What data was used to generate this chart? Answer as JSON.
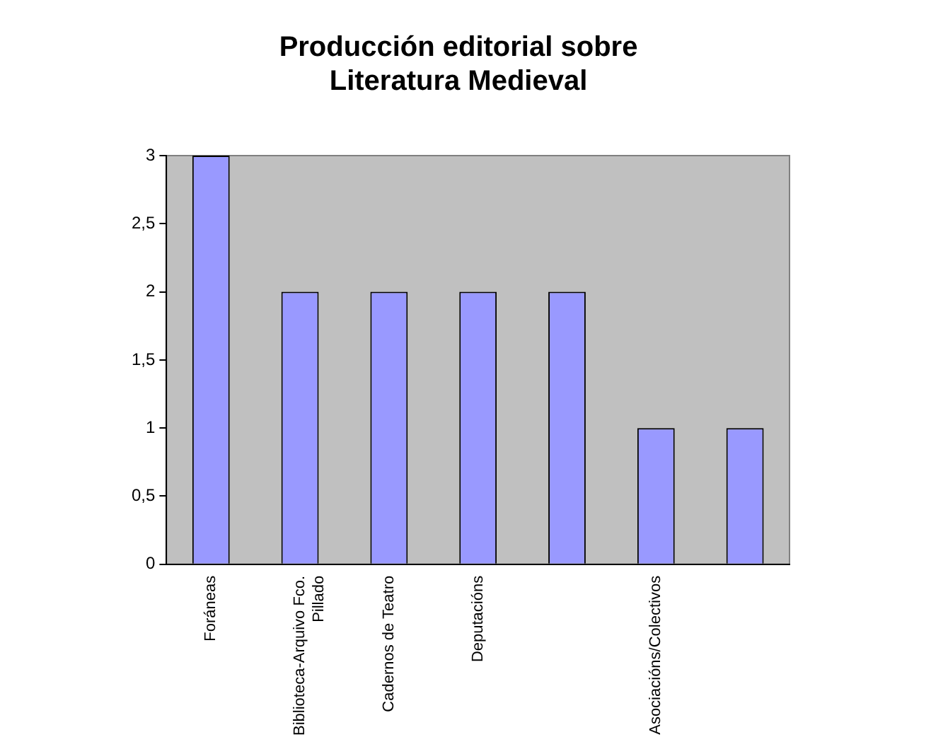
{
  "chart_data": {
    "type": "bar",
    "title": "Producción editorial sobre Literatura Medieval",
    "categories": [
      "Foráneas",
      "Biblioteca-Arquivo Fco. Pillado",
      "Cadernos de Teatro",
      "Deputacións",
      null,
      "Asociacións/Colectivos",
      null
    ],
    "values": [
      3,
      2,
      2,
      2,
      2,
      1,
      1
    ],
    "color": "#9999ff",
    "ylim": [
      0,
      3
    ],
    "yticks": [
      0,
      {
        "value": 0.5,
        "label": "0,5"
      },
      1,
      {
        "value": 1.5,
        "label": "1,5"
      },
      2,
      {
        "value": 2.5,
        "label": "2,5"
      },
      3
    ],
    "grid": false,
    "legend": false
  }
}
